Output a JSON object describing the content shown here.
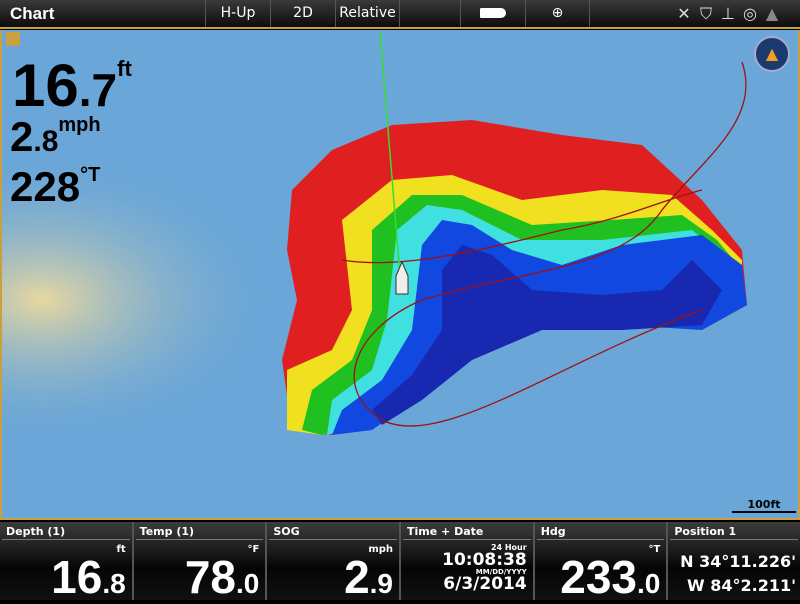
{
  "topbar": {
    "title": "Chart",
    "buttons": [
      "H-Up",
      "2D",
      "Relative"
    ],
    "icons": [
      "boat-view-icon",
      "crosshair-icon",
      "gps-satellite-icon",
      "sonar-icon",
      "depth-icon",
      "compass-icon",
      "autopilot-icon"
    ]
  },
  "overlay": {
    "depth_int": "16",
    "depth_dec": ".7",
    "depth_unit": "ft",
    "speed_int": "2",
    "speed_dec": ".8",
    "speed_unit": "mph",
    "heading": "228",
    "heading_unit": "°T"
  },
  "map": {
    "scale": "100ft",
    "colors": {
      "water": "#6aa6d8",
      "shallow": "#e02020",
      "mid": "#f0e020",
      "green": "#20c020",
      "cyan": "#40e0e0",
      "deep": "#1040e0",
      "deepest": "#1020a0"
    }
  },
  "databar": [
    {
      "label": "Depth (1)",
      "unit": "ft",
      "int": "16",
      "dec": ".8"
    },
    {
      "label": "Temp (1)",
      "unit": "°F",
      "int": "78",
      "dec": ".0"
    },
    {
      "label": "SOG",
      "unit": "mph",
      "int": "2",
      "dec": ".9"
    },
    {
      "label": "Time + Date",
      "format_time": "24 Hour",
      "time": "10:08:38",
      "format_date": "MM/DD/YYYY",
      "date": "6/3/2014"
    },
    {
      "label": "Hdg",
      "unit": "°T",
      "int": "233",
      "dec": ".0"
    },
    {
      "label": "Position 1",
      "lat": "N 34°11.226'",
      "lon": "W 84°2.211'"
    }
  ]
}
